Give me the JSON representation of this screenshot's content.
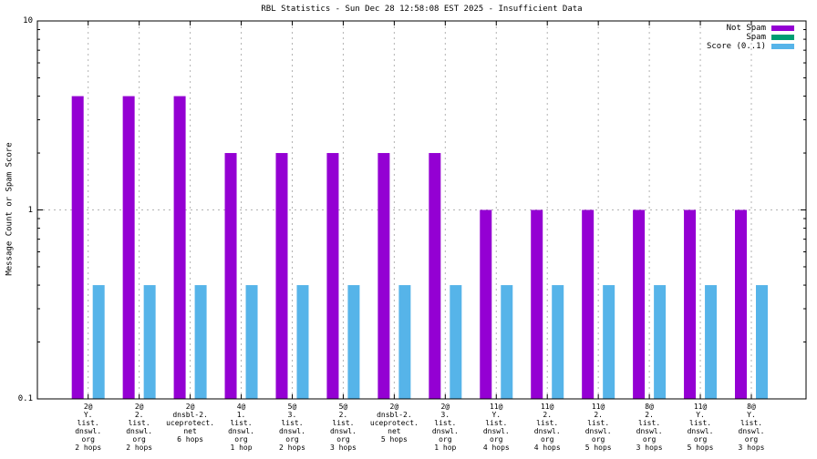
{
  "chart_data": {
    "type": "bar",
    "title": "RBL Statistics - Sun Dec 28 12:58:08 EST 2025 - Insufficient Data",
    "xlabel": "",
    "ylabel": "Message Count or Spam Score",
    "yscale": "log",
    "ylim": [
      0.1,
      10
    ],
    "grid": true,
    "legend_position": "top-right",
    "yticks": [
      {
        "value": 0.1,
        "label": "0.1"
      },
      {
        "value": 1,
        "label": "1"
      },
      {
        "value": 10,
        "label": "10"
      }
    ],
    "colors": {
      "not_spam": "#9400d3",
      "spam": "#009e73",
      "score": "#56b4e9",
      "grid": "#b3b3b3",
      "axis": "#000000",
      "background": "#ffffff"
    },
    "categories": [
      [
        "2@",
        "Y.",
        "list.",
        "dnswl.",
        "org",
        "2 hops"
      ],
      [
        "2@",
        "2.",
        "list.",
        "dnswl.",
        "org",
        "2 hops"
      ],
      [
        "2@",
        "dnsbl-2.",
        "uceprotect.",
        "net",
        "6 hops"
      ],
      [
        "4@",
        "1.",
        "list.",
        "dnswl.",
        "org",
        "1 hop"
      ],
      [
        "5@",
        "3.",
        "list.",
        "dnswl.",
        "org",
        "2 hops"
      ],
      [
        "5@",
        "2.",
        "list.",
        "dnswl.",
        "org",
        "3 hops"
      ],
      [
        "2@",
        "dnsbl-2.",
        "uceprotect.",
        "net",
        "5 hops"
      ],
      [
        "2@",
        "3.",
        "list.",
        "dnswl.",
        "org",
        "1 hop"
      ],
      [
        "11@",
        "Y.",
        "list.",
        "dnswl.",
        "org",
        "4 hops"
      ],
      [
        "11@",
        "2.",
        "list.",
        "dnswl.",
        "org",
        "4 hops"
      ],
      [
        "11@",
        "2.",
        "list.",
        "dnswl.",
        "org",
        "5 hops"
      ],
      [
        "8@",
        "2.",
        "list.",
        "dnswl.",
        "org",
        "3 hops"
      ],
      [
        "11@",
        "Y.",
        "list.",
        "dnswl.",
        "org",
        "5 hops"
      ],
      [
        "8@",
        "Y.",
        "list.",
        "dnswl.",
        "org",
        "3 hops"
      ]
    ],
    "series": [
      {
        "name": "Not Spam",
        "color": "#9400d3",
        "values": [
          4,
          4,
          4,
          2,
          2,
          2,
          2,
          2,
          1,
          1,
          1,
          1,
          1,
          1
        ]
      },
      {
        "name": "Spam",
        "color": "#009e73",
        "values": [
          0,
          0,
          0,
          0,
          0,
          0,
          0,
          0,
          0,
          0,
          0,
          0,
          0,
          0
        ]
      },
      {
        "name": "Score (0..1)",
        "color": "#56b4e9",
        "values": [
          0.4,
          0.4,
          0.4,
          0.4,
          0.4,
          0.4,
          0.4,
          0.4,
          0.4,
          0.4,
          0.4,
          0.4,
          0.4,
          0.4
        ]
      }
    ]
  }
}
